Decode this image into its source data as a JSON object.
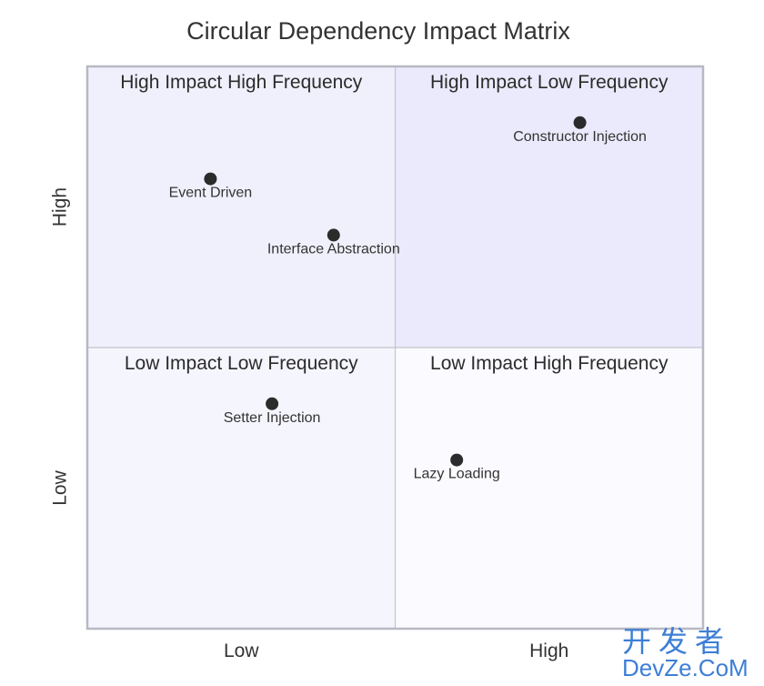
{
  "chart_data": {
    "type": "scatter",
    "title": "Circular Dependency Impact Matrix",
    "x_axis": {
      "min": 0,
      "max": 1,
      "ticks": [
        "Low",
        "High"
      ]
    },
    "y_axis": {
      "min": 0,
      "max": 1,
      "ticks": [
        "Low",
        "High"
      ]
    },
    "quadrants": [
      {
        "label": "High Impact High Frequency",
        "position": "top-left",
        "color": "#f0f0fc"
      },
      {
        "label": "High Impact Low Frequency",
        "position": "top-right",
        "color": "#eaeafc"
      },
      {
        "label": "Low Impact Low Frequency",
        "position": "bottom-left",
        "color": "#f5f5fe"
      },
      {
        "label": "Low Impact High Frequency",
        "position": "bottom-right",
        "color": "#fafaff"
      }
    ],
    "points": [
      {
        "label": "Constructor Injection",
        "x": 0.8,
        "y": 0.9
      },
      {
        "label": "Event Driven",
        "x": 0.2,
        "y": 0.8
      },
      {
        "label": "Interface Abstraction",
        "x": 0.4,
        "y": 0.7
      },
      {
        "label": "Setter Injection",
        "x": 0.3,
        "y": 0.4
      },
      {
        "label": "Lazy Loading",
        "x": 0.6,
        "y": 0.3
      }
    ],
    "point_color": "#2b2b2b",
    "border_color": "#b8b8c4",
    "grid": false
  },
  "watermark": {
    "chinese": "开发者",
    "english": "DevZe.CoM"
  }
}
